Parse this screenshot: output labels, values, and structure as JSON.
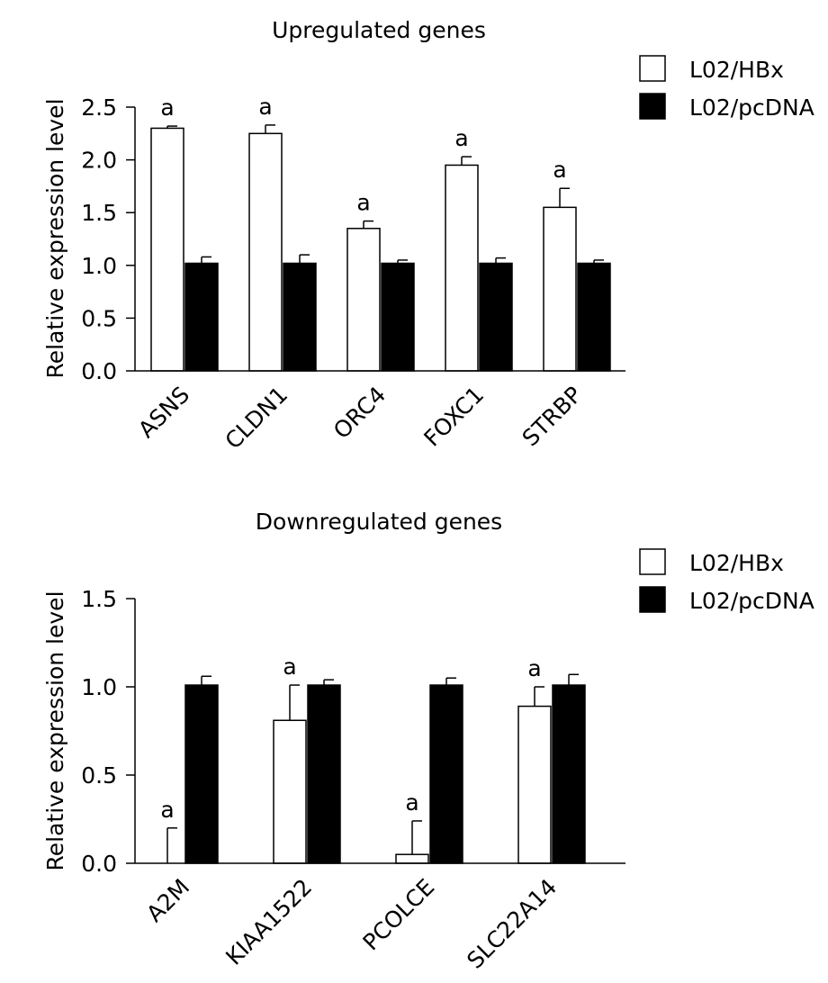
{
  "chart_data": [
    {
      "type": "bar",
      "title": "Upregulated genes",
      "xlabel": "",
      "ylabel": "Relative expression level",
      "ylim": [
        0,
        2.5
      ],
      "yticks": [
        "0.0",
        "0.5",
        "1.0",
        "1.5",
        "2.0",
        "2.5"
      ],
      "categories": [
        "ASNS",
        "CLDN1",
        "ORC4",
        "FOXC1",
        "STRBP"
      ],
      "series": [
        {
          "name": "L02/HBx",
          "fill": "#ffffff",
          "values": [
            2.3,
            2.25,
            1.35,
            1.95,
            1.55
          ],
          "errors": [
            0.02,
            0.08,
            0.07,
            0.08,
            0.18
          ]
        },
        {
          "name": "L02/pcDNA",
          "fill": "#000000",
          "values": [
            1.02,
            1.02,
            1.02,
            1.02,
            1.02
          ],
          "errors": [
            0.06,
            0.08,
            0.03,
            0.05,
            0.03
          ]
        }
      ],
      "annotations": [
        "a",
        "a",
        "a",
        "a",
        "a"
      ],
      "legend_position": "top-right",
      "grid": false
    },
    {
      "type": "bar",
      "title": "Downregulated genes",
      "xlabel": "",
      "ylabel": "Relative expression level",
      "ylim": [
        0,
        1.5
      ],
      "yticks": [
        "0.0",
        "0.5",
        "1.0",
        "1.5"
      ],
      "categories": [
        "A2M",
        "KIAA1522",
        "PCOLCE",
        "SLC22A14"
      ],
      "series": [
        {
          "name": "L02/HBx",
          "fill": "#ffffff",
          "values": [
            0.0,
            0.81,
            0.05,
            0.89
          ],
          "errors": [
            0.2,
            0.2,
            0.19,
            0.11
          ]
        },
        {
          "name": "L02/pcDNA",
          "fill": "#000000",
          "values": [
            1.01,
            1.01,
            1.01,
            1.01
          ],
          "errors": [
            0.05,
            0.03,
            0.04,
            0.06
          ]
        }
      ],
      "annotations": [
        "a",
        "a",
        "a",
        "a"
      ],
      "legend_position": "top-right",
      "grid": false
    }
  ]
}
